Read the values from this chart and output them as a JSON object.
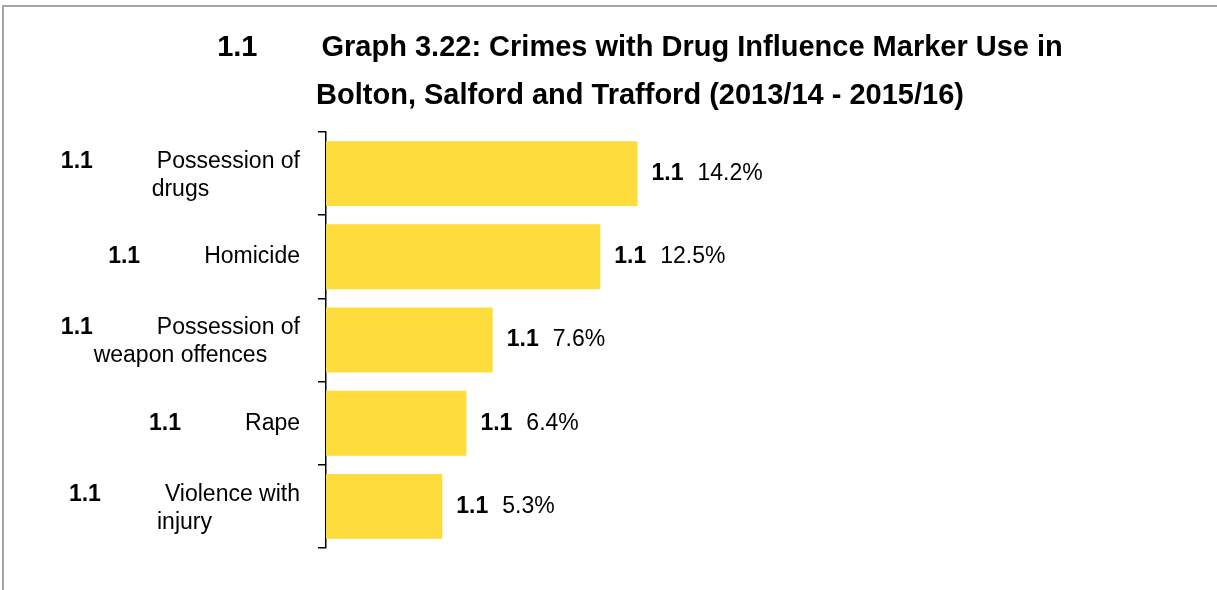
{
  "chart_data": {
    "type": "bar",
    "orientation": "horizontal",
    "title": "1.1\tGraph 3.22: Crimes with Drug Influence Marker Use in Bolton, Salford and Trafford (2013/14 - 2015/16)",
    "categories": [
      "1.1\tPossession of drugs",
      "1.1\tHomicide",
      "1.1\tPossession of weapon offences",
      "1.1\tRape",
      "1.1\tViolence with injury"
    ],
    "values": [
      14.2,
      12.5,
      7.6,
      6.4,
      5.3
    ],
    "value_labels": [
      "14.2%",
      "12.5%",
      "7.6%",
      "6.4%",
      "5.3%"
    ],
    "annotations": [
      {
        "text": "1.1",
        "x": 14.2,
        "y": "1.1\tPossession of drugs"
      },
      {
        "text": "1.1",
        "x": 12.5,
        "y": "1.1\tHomicide"
      },
      {
        "text": "1.1",
        "x": 7.6,
        "y": "1.1\tPossession of weapon offences"
      },
      {
        "text": "1.1",
        "x": 6.4,
        "y": "1.1\tRape"
      },
      {
        "text": "1.1",
        "x": 5.3,
        "y": "1.1\tViolence with injury"
      }
    ],
    "color": "#fddc3c",
    "tick_labels": "y"
  }
}
